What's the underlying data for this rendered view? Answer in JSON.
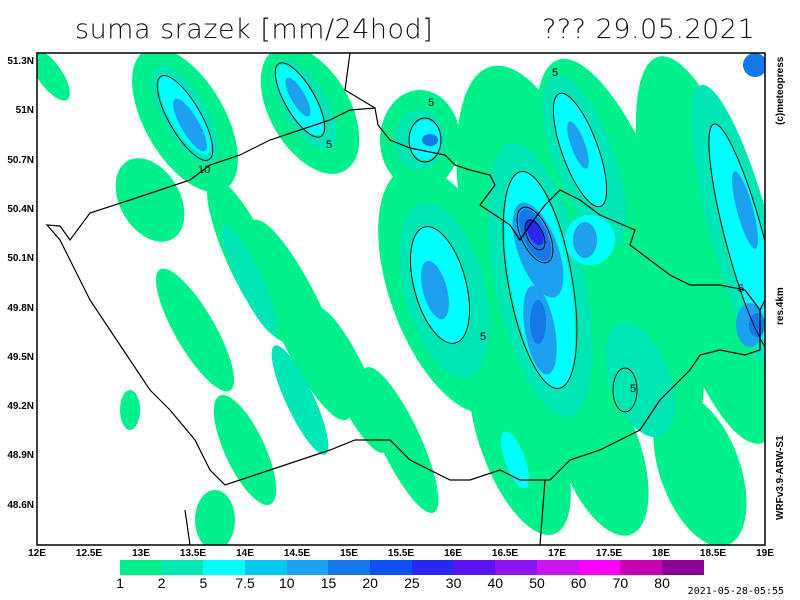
{
  "title": "suma srazek [mm/24hod]",
  "date": "??? 29.05.2021",
  "side_labels": {
    "copyright": "(c)meteopress",
    "resolution": "res.4km",
    "model": "WRFv3.9-ARW-S1"
  },
  "y_ticks": [
    "51.3N",
    "51N",
    "50.7N",
    "50.4N",
    "50.1N",
    "49.8N",
    "49.5N",
    "49.2N",
    "48.9N",
    "48.6N"
  ],
  "x_ticks": [
    "12E",
    "12.5E",
    "13E",
    "13.5E",
    "14E",
    "14.5E",
    "15E",
    "15.5E",
    "16E",
    "16.5E",
    "17E",
    "17.5E",
    "18E",
    "18.5E",
    "19E"
  ],
  "colorbar": {
    "labels": [
      "1",
      "2",
      "5",
      "7.5",
      "10",
      "15",
      "20",
      "25",
      "30",
      "40",
      "50",
      "60",
      "70",
      "80"
    ],
    "colors": [
      "#00f08c",
      "#00e6b4",
      "#00ffff",
      "#00c8f0",
      "#1ea0f0",
      "#1478e6",
      "#0f50f0",
      "#2828f0",
      "#5a14f0",
      "#8c14f0",
      "#c814f0",
      "#ff00ff",
      "#c800b4",
      "#8c0096"
    ]
  },
  "contour_labels": [
    "5",
    "5",
    "5",
    "10",
    "5",
    "5",
    "5"
  ],
  "timestamp": "2021-05-28-05:55"
}
